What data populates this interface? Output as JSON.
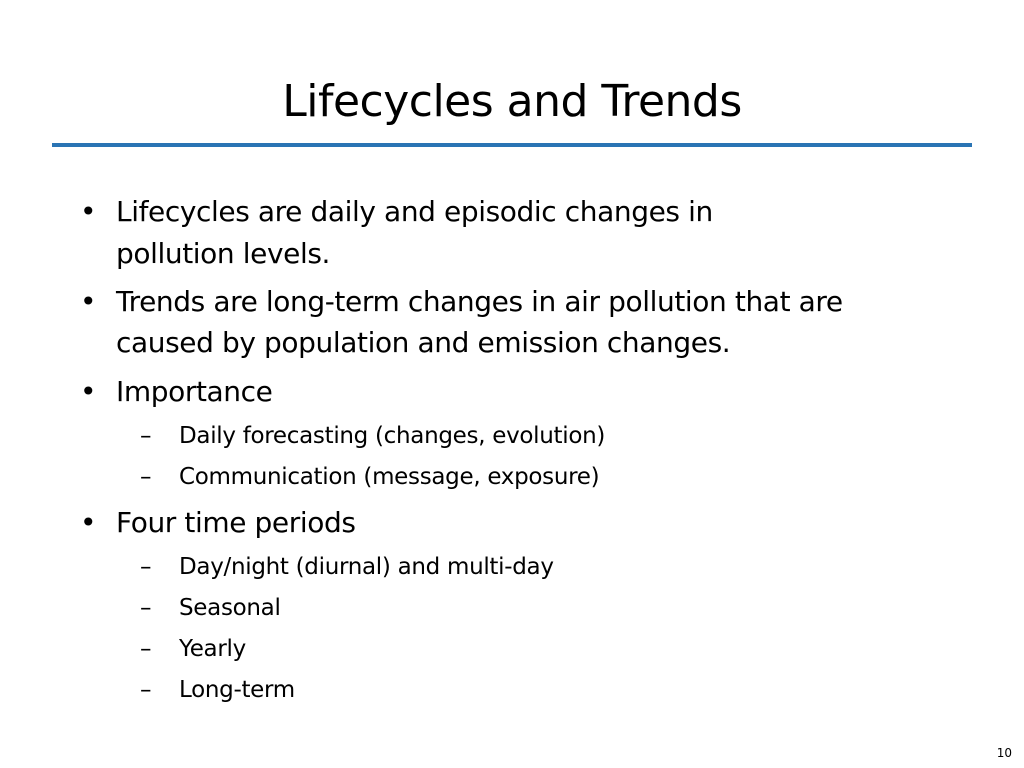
{
  "slide": {
    "title": "Lifecycles and Trends",
    "bullets": [
      {
        "marker": "•",
        "lines": [
          "Lifecycles are daily and episodic changes in",
          "pollution levels."
        ]
      },
      {
        "marker": "•",
        "lines": [
          "Trends are long-term changes in air pollution that are",
          "caused by population and emission changes."
        ]
      },
      {
        "marker": "•",
        "lines": [
          "Importance"
        ],
        "sub": [
          {
            "marker": "–",
            "text": "Daily forecasting (changes, evolution)"
          },
          {
            "marker": "–",
            "text": "Communication (message, exposure)"
          }
        ]
      },
      {
        "marker": "•",
        "lines": [
          "Four time periods"
        ],
        "sub": [
          {
            "marker": "–",
            "text": "Day/night (diurnal) and multi-day"
          },
          {
            "marker": "–",
            "text": "Seasonal"
          },
          {
            "marker": "–",
            "text": "Yearly"
          },
          {
            "marker": "–",
            "text": "Long-term"
          }
        ]
      }
    ],
    "page_number": "10",
    "accent_color": "#2a74b4"
  }
}
